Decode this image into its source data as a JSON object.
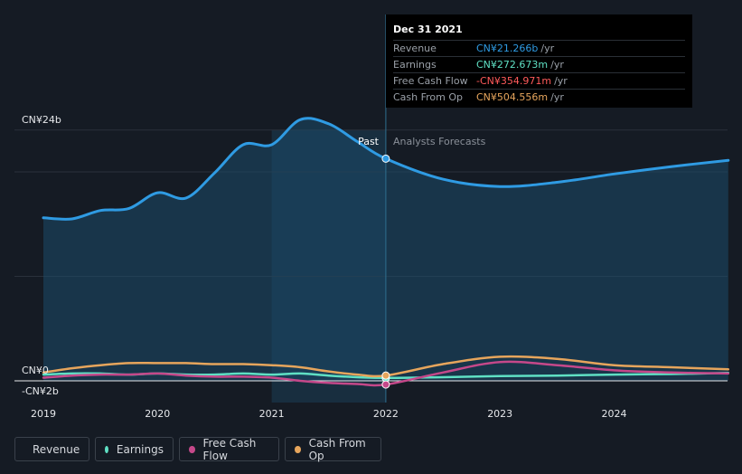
{
  "colors": {
    "revenue": "#2f9be3",
    "earnings": "#5fe0c4",
    "free_cash_flow": "#c5488a",
    "cash_from_op": "#e6a55c",
    "fcf_negative_text": "#ff5a5a"
  },
  "tooltip": {
    "date": "Dec 31 2021",
    "rows": [
      {
        "label": "Revenue",
        "value": "CN¥21.266b",
        "unit": "/yr"
      },
      {
        "label": "Earnings",
        "value": "CN¥272.673m",
        "unit": "/yr"
      },
      {
        "label": "Free Cash Flow",
        "value": "-CN¥354.971m",
        "unit": "/yr"
      },
      {
        "label": "Cash From Op",
        "value": "CN¥504.556m",
        "unit": "/yr"
      }
    ]
  },
  "legend": {
    "revenue": "Revenue",
    "earnings": "Earnings",
    "free_cash_flow": "Free Cash Flow",
    "cash_from_op": "Cash From Op"
  },
  "chart_data": {
    "type": "line",
    "title": "",
    "y_unit": "CN¥ billions",
    "ylim": [
      -2,
      24
    ],
    "y_tick_labels": {
      "top": "CN¥24b",
      "zero": "CN¥0",
      "bottom": "-CN¥2b"
    },
    "x_ticks": [
      2019,
      2020,
      2021,
      2022,
      2023,
      2024
    ],
    "x_tick_labels": [
      "2019",
      "2020",
      "2021",
      "2022",
      "2023",
      "2024"
    ],
    "past_label": "Past",
    "forecast_label": "Analysts Forecasts",
    "past_start": 2021.0,
    "divider_x": 2022.0,
    "highlight": {
      "x": 2022.0,
      "revenue": 21.266,
      "earnings": 0.273,
      "free_cash_flow": -0.355,
      "cash_from_op": 0.505
    },
    "series": [
      {
        "name": "Revenue",
        "key": "revenue",
        "x": [
          2019.0,
          2019.25,
          2019.5,
          2019.75,
          2020.0,
          2020.25,
          2020.5,
          2020.75,
          2021.0,
          2021.25,
          2021.5,
          2021.75,
          2022.0,
          2022.5,
          2023.0,
          2023.5,
          2024.0,
          2024.5,
          2025.0
        ],
        "values": [
          15.6,
          15.5,
          16.3,
          16.5,
          18.0,
          17.5,
          19.9,
          22.6,
          22.6,
          25.0,
          24.6,
          22.9,
          21.266,
          19.3,
          18.6,
          19.0,
          19.8,
          20.5,
          21.1
        ]
      },
      {
        "name": "Earnings",
        "key": "earnings",
        "x": [
          2019.0,
          2019.25,
          2019.5,
          2019.75,
          2020.0,
          2020.25,
          2020.5,
          2020.75,
          2021.0,
          2021.25,
          2021.5,
          2021.75,
          2022.0,
          2022.5,
          2023.0,
          2023.5,
          2024.0,
          2024.5,
          2025.0
        ],
        "values": [
          0.6,
          0.7,
          0.7,
          0.6,
          0.7,
          0.6,
          0.6,
          0.7,
          0.6,
          0.7,
          0.5,
          0.35,
          0.273,
          0.35,
          0.45,
          0.5,
          0.6,
          0.65,
          0.75
        ]
      },
      {
        "name": "Free Cash Flow",
        "key": "free_cash_flow",
        "x": [
          2019.0,
          2019.25,
          2019.5,
          2019.75,
          2020.0,
          2020.25,
          2020.5,
          2020.75,
          2021.0,
          2021.25,
          2021.5,
          2021.75,
          2022.0,
          2022.5,
          2023.0,
          2023.5,
          2024.0,
          2024.5,
          2025.0
        ],
        "values": [
          0.3,
          0.5,
          0.6,
          0.6,
          0.7,
          0.5,
          0.4,
          0.4,
          0.3,
          0.0,
          -0.2,
          -0.3,
          -0.355,
          0.8,
          1.8,
          1.5,
          1.0,
          0.8,
          0.7
        ]
      },
      {
        "name": "Cash From Op",
        "key": "cash_from_op",
        "x": [
          2019.0,
          2019.25,
          2019.5,
          2019.75,
          2020.0,
          2020.25,
          2020.5,
          2020.75,
          2021.0,
          2021.25,
          2021.5,
          2021.75,
          2022.0,
          2022.5,
          2023.0,
          2023.5,
          2024.0,
          2024.5,
          2025.0
        ],
        "values": [
          0.8,
          1.2,
          1.5,
          1.7,
          1.7,
          1.7,
          1.6,
          1.6,
          1.5,
          1.3,
          0.9,
          0.6,
          0.505,
          1.6,
          2.3,
          2.1,
          1.5,
          1.3,
          1.1
        ]
      }
    ]
  }
}
